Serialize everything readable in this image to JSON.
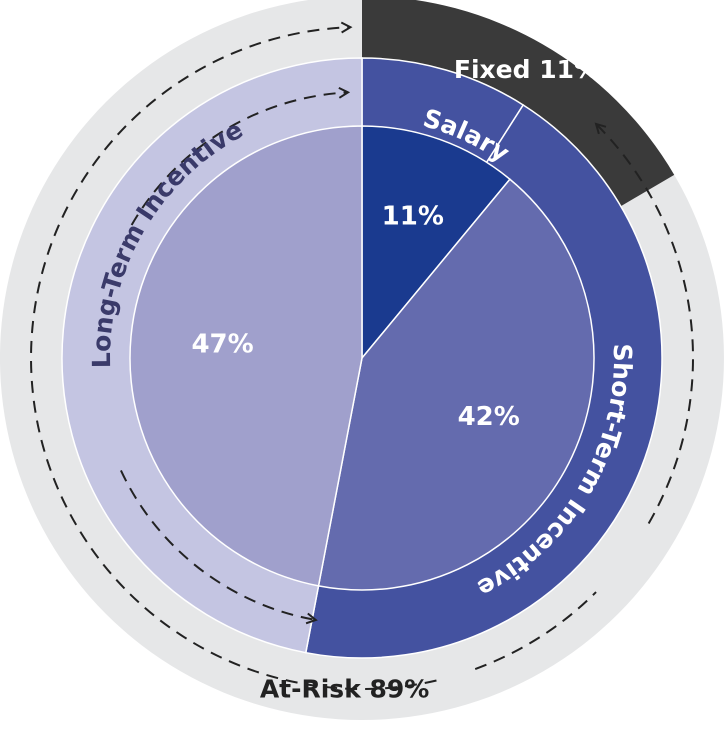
{
  "chart_data": {
    "type": "pie",
    "title": "",
    "inner": [
      {
        "name": "Salary",
        "value": 11,
        "label": "11%"
      },
      {
        "name": "Short-Term Incentive",
        "value": 42,
        "label": "42%"
      },
      {
        "name": "Long-Term Incentive",
        "value": 47,
        "label": "47%"
      }
    ],
    "ring": [
      {
        "name": "Salary",
        "label": "Salary"
      },
      {
        "name": "Short-Term Incentive",
        "label": "Short-Term Incentive"
      },
      {
        "name": "Long-Term Incentive",
        "label": "Long-Term Incentive"
      }
    ],
    "groups": {
      "fixed": {
        "label": "Fixed 11%",
        "value": 11
      },
      "at_risk": {
        "label": "At-Risk 89%",
        "value": 89
      }
    }
  },
  "colors": {
    "salary_inner": "#1a3a8f",
    "sti_inner": "#646bae",
    "lti_inner": "#a0a0cc",
    "salary_ring": "#4452a0",
    "sti_ring": "#4452a0",
    "lti_ring": "#c4c5e2",
    "fixed_band": "#3a3a3a",
    "outer_band": "#e6e7e8",
    "dash": "#222222"
  }
}
